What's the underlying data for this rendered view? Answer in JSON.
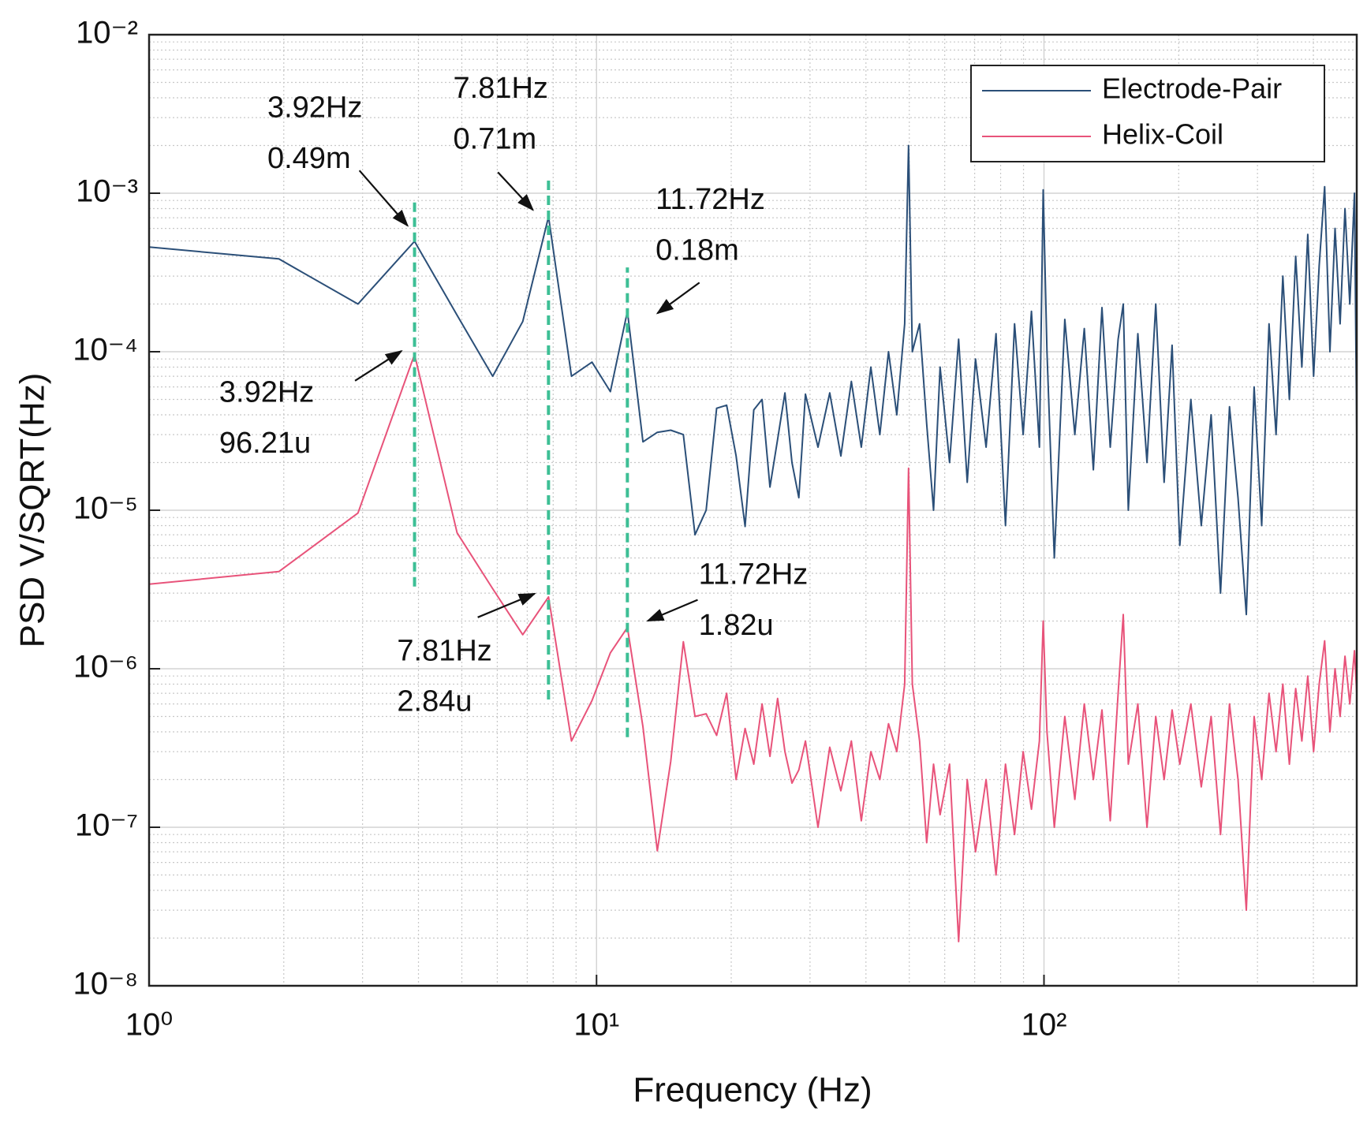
{
  "chart_data": {
    "type": "line",
    "xlabel": "Frequency (Hz)",
    "ylabel": "PSD V/SQRT(Hz)",
    "xscale": "log",
    "yscale": "log",
    "xlim": [
      1,
      500
    ],
    "ylim": [
      1e-08,
      0.01
    ],
    "xticks": [
      {
        "value": 1,
        "label": "10⁰"
      },
      {
        "value": 10,
        "label": "10¹"
      },
      {
        "value": 100,
        "label": "10²"
      }
    ],
    "yticks": [
      {
        "value": 1e-08,
        "label": "10⁻⁸"
      },
      {
        "value": 1e-07,
        "label": "10⁻⁷"
      },
      {
        "value": 1e-06,
        "label": "10⁻⁶"
      },
      {
        "value": 1e-05,
        "label": "10⁻⁵"
      },
      {
        "value": 0.0001,
        "label": "10⁻⁴"
      },
      {
        "value": 0.001,
        "label": "10⁻³"
      },
      {
        "value": 0.01,
        "label": "10⁻²"
      }
    ],
    "xminorticks": [
      2,
      3,
      4,
      5,
      6,
      7,
      8,
      9,
      20,
      30,
      40,
      50,
      60,
      70,
      80,
      90,
      200,
      300,
      400
    ],
    "yminorticks": [
      2e-08,
      3e-08,
      4e-08,
      5e-08,
      6e-08,
      7e-08,
      8e-08,
      9e-08,
      2e-07,
      3e-07,
      4e-07,
      5e-07,
      6e-07,
      7e-07,
      8e-07,
      9e-07,
      2e-06,
      3e-06,
      4e-06,
      5e-06,
      6e-06,
      7e-06,
      8e-06,
      9e-06,
      2e-05,
      3e-05,
      4e-05,
      5e-05,
      6e-05,
      7e-05,
      8e-05,
      9e-05,
      0.0002,
      0.0003,
      0.0004,
      0.0005,
      0.0006,
      0.0007,
      0.0008,
      0.0009,
      0.002,
      0.003,
      0.004,
      0.005,
      0.006,
      0.007,
      0.008,
      0.009
    ],
    "grid": true,
    "minor_grid": true,
    "legend": "upper right",
    "x": [
      0.98,
      1.95,
      2.93,
      3.92,
      4.88,
      5.86,
      6.84,
      7.81,
      8.79,
      9.77,
      10.74,
      11.72,
      12.7,
      13.67,
      14.65,
      15.63,
      16.6,
      17.58,
      18.55,
      19.53,
      20.51,
      21.48,
      22.46,
      23.44,
      24.41,
      25.39,
      26.37,
      27.34,
      28.32,
      29.3,
      31.25,
      33.2,
      35.16,
      37.11,
      39.06,
      41.02,
      42.97,
      44.92,
      46.88,
      48.83,
      49.8,
      50.78,
      52.73,
      54.69,
      56.64,
      58.59,
      61.52,
      64.45,
      67.38,
      70.31,
      74.22,
      78.13,
      82.03,
      85.94,
      89.84,
      93.75,
      97.66,
      99.61,
      101.56,
      105.47,
      111.33,
      117.19,
      123.05,
      128.91,
      134.77,
      140.63,
      146.48,
      150.39,
      154.3,
      162.11,
      169.92,
      177.73,
      185.55,
      193.36,
      201.17,
      212.89,
      224.61,
      236.33,
      248.05,
      259.77,
      271.48,
      283.2,
      294.92,
      306.64,
      318.36,
      330.08,
      341.8,
      353.52,
      365.23,
      376.95,
      388.67,
      400.39,
      412.11,
      423.83,
      435.55,
      447.27,
      458.98,
      470.7,
      482.42,
      494.14,
      500
    ],
    "series": [
      {
        "name": "Electrode-Pair",
        "color": "#2b4f78",
        "values": [
          0.00046,
          0.000385,
          0.0002,
          0.000497,
          0.00017,
          7e-05,
          0.000155,
          0.00071,
          7e-05,
          8.6e-05,
          5.6e-05,
          0.00018,
          2.7e-05,
          3.1e-05,
          3.2e-05,
          3e-05,
          7e-06,
          1e-05,
          4.4e-05,
          4.6e-05,
          2.2e-05,
          7.9e-06,
          4.3e-05,
          5e-05,
          1.4e-05,
          2.8e-05,
          5.5e-05,
          2e-05,
          1.2e-05,
          5.4e-05,
          2.5e-05,
          5.5e-05,
          2.2e-05,
          6.5e-05,
          2.5e-05,
          8e-05,
          3e-05,
          0.0001,
          4e-05,
          0.00015,
          0.002,
          0.0001,
          0.00015,
          3.5e-05,
          1e-05,
          8e-05,
          2e-05,
          0.00012,
          1.5e-05,
          9e-05,
          2.5e-05,
          0.00013,
          8e-06,
          0.00015,
          3e-05,
          0.00018,
          2.5e-05,
          0.00105,
          0.0001,
          5e-06,
          0.00016,
          3e-05,
          0.00014,
          1.8e-05,
          0.00019,
          2.5e-05,
          0.00012,
          0.0002,
          1e-05,
          0.00013,
          2e-05,
          0.0002,
          1.5e-05,
          0.00011,
          6e-06,
          5e-05,
          8e-06,
          4e-05,
          3e-06,
          4.5e-05,
          1.2e-05,
          2.2e-06,
          6e-05,
          8e-06,
          0.00015,
          3e-05,
          0.0003,
          5e-05,
          0.0004,
          8e-05,
          0.00055,
          7e-05,
          0.00035,
          0.0011,
          0.0001,
          0.0006,
          0.00015,
          0.0008,
          0.0002,
          0.001,
          3e-05
        ]
      },
      {
        "name": "Helix-Coil",
        "color": "#e8537a",
        "values": [
          3.4e-06,
          4.1e-06,
          9.6e-06,
          9.62e-05,
          7.2e-06,
          3.2e-06,
          1.64e-06,
          2.84e-06,
          3.5e-07,
          6.3e-07,
          1.26e-06,
          1.82e-06,
          4.3e-07,
          7.1e-08,
          2.6e-07,
          1.48e-06,
          5e-07,
          5.2e-07,
          3.8e-07,
          7e-07,
          2e-07,
          4.2e-07,
          2.5e-07,
          6e-07,
          2.8e-07,
          6.5e-07,
          3e-07,
          1.9e-07,
          2.3e-07,
          3.5e-07,
          1e-07,
          3.2e-07,
          1.7e-07,
          3.5e-07,
          1.1e-07,
          3e-07,
          2e-07,
          4.5e-07,
          3e-07,
          8e-07,
          1.84e-05,
          8e-07,
          3.5e-07,
          8e-08,
          2.5e-07,
          1.2e-07,
          2.5e-07,
          1.9e-08,
          2e-07,
          7e-08,
          2e-07,
          5e-08,
          2.5e-07,
          9e-08,
          3e-07,
          1.3e-07,
          3.5e-07,
          2e-06,
          4e-07,
          1e-07,
          5e-07,
          1.5e-07,
          6e-07,
          2e-07,
          5.5e-07,
          1.1e-07,
          7e-07,
          2.2e-06,
          2.5e-07,
          6e-07,
          1e-07,
          5e-07,
          2e-07,
          5.5e-07,
          2.5e-07,
          6e-07,
          1.8e-07,
          5e-07,
          9e-08,
          6e-07,
          2e-07,
          3e-08,
          5e-07,
          2e-07,
          7e-07,
          3e-07,
          8e-07,
          2.5e-07,
          7.5e-07,
          3.5e-07,
          9e-07,
          3e-07,
          8e-07,
          1.5e-06,
          4e-07,
          1e-06,
          5e-07,
          1.2e-06,
          6e-07,
          1.3e-06,
          7e-07
        ]
      }
    ],
    "vlines": [
      {
        "x": 3.92,
        "y": [
          3.3e-06,
          0.00089
        ]
      },
      {
        "x": 7.81,
        "y": [
          6.4e-07,
          0.0013
        ]
      },
      {
        "x": 11.72,
        "y": [
          3.7e-07,
          0.00034
        ]
      }
    ],
    "vline_color": "#3dbf95",
    "annotations": [
      {
        "lines": [
          "3.92Hz",
          "0.49m"
        ]
      },
      {
        "lines": [
          "7.81Hz",
          "0.71m"
        ]
      },
      {
        "lines": [
          "11.72Hz",
          "0.18m"
        ]
      },
      {
        "lines": [
          "3.92Hz",
          "96.21u"
        ]
      },
      {
        "lines": [
          "7.81Hz",
          "2.84u"
        ]
      },
      {
        "lines": [
          "11.72Hz",
          "1.82u"
        ]
      }
    ]
  }
}
